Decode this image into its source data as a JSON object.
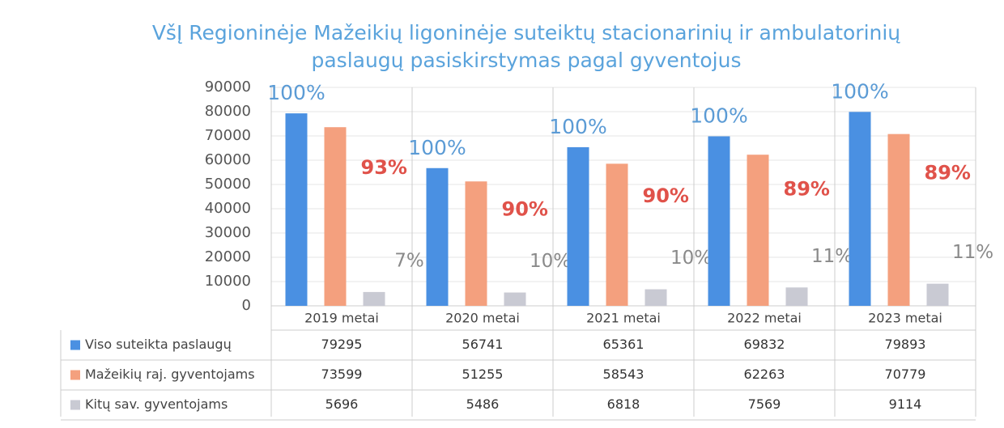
{
  "chart_data": {
    "type": "bar",
    "title": [
      "VšĮ Regioninėje Mažeikių ligoninėje suteiktų stacionarinių ir ambulatorinių",
      "paslaugų pasiskirstymas pagal gyventojus"
    ],
    "categories": [
      "2019 metai",
      "2020 metai",
      "2021 metai",
      "2022 metai",
      "2023 metai"
    ],
    "series": [
      {
        "name": "Viso suteikta paslaugų",
        "color": "#4a90e2",
        "values": [
          79295,
          56741,
          65361,
          69832,
          79893
        ],
        "share_labels": [
          "100%",
          "100%",
          "100%",
          "100%",
          "100%"
        ],
        "label_color": "#5b9bd5"
      },
      {
        "name": "Mažeikių raj. gyventojams",
        "color": "#f4a07e",
        "values": [
          73599,
          51255,
          58543,
          62263,
          70779
        ],
        "share_labels": [
          "93%",
          "90%",
          "90%",
          "89%",
          "89%"
        ],
        "label_color": "#e0524a"
      },
      {
        "name": "Kitų sav. gyventojams",
        "color": "#c9cad3",
        "values": [
          5696,
          5486,
          6818,
          7569,
          9114
        ],
        "share_labels": [
          "7%",
          "10%",
          "10%",
          "11%",
          "11%"
        ],
        "label_color": "#8a8a8a"
      }
    ],
    "ylim": [
      0,
      90000
    ],
    "yticks": [
      0,
      10000,
      20000,
      30000,
      40000,
      50000,
      60000,
      70000,
      80000,
      90000
    ],
    "grid": true
  }
}
